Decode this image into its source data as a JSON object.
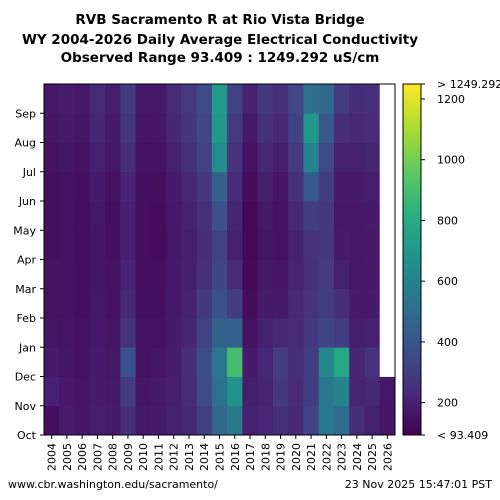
{
  "title_lines": [
    "RVB Sacramento R at Rio Vista Bridge",
    "WY 2004-2026 Daily Average Electrical Conductivity",
    "Observed Range 93.409 : 1249.292 uS/cm"
  ],
  "footer": {
    "source": "www.cbr.washington.edu/sacramento/",
    "timestamp": "23 Nov 2025 15:47:01 PST"
  },
  "chart_data": {
    "type": "heatmap",
    "x_categories": [
      "2004",
      "2005",
      "2006",
      "2007",
      "2008",
      "2009",
      "2010",
      "2011",
      "2012",
      "2013",
      "2014",
      "2015",
      "2016",
      "2017",
      "2018",
      "2019",
      "2020",
      "2021",
      "2022",
      "2023",
      "2024",
      "2025",
      "2026"
    ],
    "y_categories": [
      "Oct",
      "Nov",
      "Dec",
      "Jan",
      "Feb",
      "Mar",
      "Apr",
      "May",
      "Jun",
      "Jul",
      "Aug",
      "Sep"
    ],
    "value_range": [
      93.409,
      1249.292
    ],
    "units": "uS/cm",
    "colorbar": {
      "ticks": [
        200,
        400,
        600,
        800,
        1000,
        1200
      ],
      "top_label": "> 1249.292",
      "bottom_label": "< 93.409",
      "colormap": "viridis"
    },
    "monthly_mean": [
      [
        140,
        200,
        175,
        160,
        150,
        145,
        140,
        135,
        140,
        150,
        160,
        170
      ],
      [
        185,
        170,
        160,
        155,
        150,
        150,
        145,
        145,
        150,
        160,
        175,
        185
      ],
      [
        160,
        155,
        150,
        145,
        140,
        140,
        135,
        135,
        140,
        150,
        160,
        170
      ],
      [
        190,
        180,
        175,
        170,
        165,
        160,
        160,
        165,
        180,
        200,
        215,
        230
      ],
      [
        175,
        170,
        165,
        160,
        150,
        145,
        140,
        140,
        150,
        165,
        180,
        190
      ],
      [
        250,
        300,
        380,
        260,
        220,
        210,
        200,
        200,
        210,
        240,
        270,
        290
      ],
      [
        170,
        160,
        150,
        145,
        140,
        135,
        135,
        135,
        140,
        150,
        160,
        170
      ],
      [
        180,
        170,
        160,
        150,
        140,
        135,
        130,
        130,
        135,
        145,
        160,
        175
      ],
      [
        200,
        190,
        185,
        180,
        175,
        170,
        165,
        170,
        180,
        200,
        215,
        230
      ],
      [
        220,
        230,
        240,
        210,
        200,
        195,
        190,
        200,
        220,
        250,
        270,
        290
      ],
      [
        310,
        350,
        360,
        320,
        280,
        250,
        240,
        250,
        280,
        320,
        340,
        360
      ],
      [
        480,
        520,
        540,
        450,
        380,
        330,
        320,
        380,
        450,
        650,
        700,
        720
      ],
      [
        560,
        680,
        900,
        450,
        300,
        230,
        200,
        210,
        230,
        260,
        290,
        320
      ],
      [
        200,
        190,
        180,
        150,
        130,
        120,
        115,
        115,
        125,
        150,
        175,
        200
      ],
      [
        220,
        210,
        220,
        200,
        180,
        170,
        160,
        170,
        190,
        220,
        250,
        280
      ],
      [
        250,
        280,
        300,
        220,
        180,
        160,
        150,
        150,
        160,
        190,
        220,
        250
      ],
      [
        220,
        230,
        240,
        230,
        220,
        210,
        205,
        220,
        250,
        290,
        320,
        340
      ],
      [
        320,
        300,
        300,
        280,
        260,
        250,
        260,
        300,
        420,
        600,
        700,
        520
      ],
      [
        560,
        560,
        620,
        330,
        300,
        290,
        280,
        280,
        300,
        350,
        420,
        480
      ],
      [
        500,
        600,
        780,
        300,
        240,
        200,
        180,
        170,
        180,
        200,
        240,
        290
      ],
      [
        240,
        210,
        210,
        190,
        180,
        170,
        165,
        170,
        180,
        200,
        220,
        240
      ],
      [
        200,
        220,
        260,
        200,
        180,
        170,
        170,
        175,
        190,
        210,
        230,
        245
      ],
      [
        160,
        165,
        null,
        null,
        null,
        null,
        null,
        null,
        null,
        null,
        null,
        null
      ]
    ]
  }
}
